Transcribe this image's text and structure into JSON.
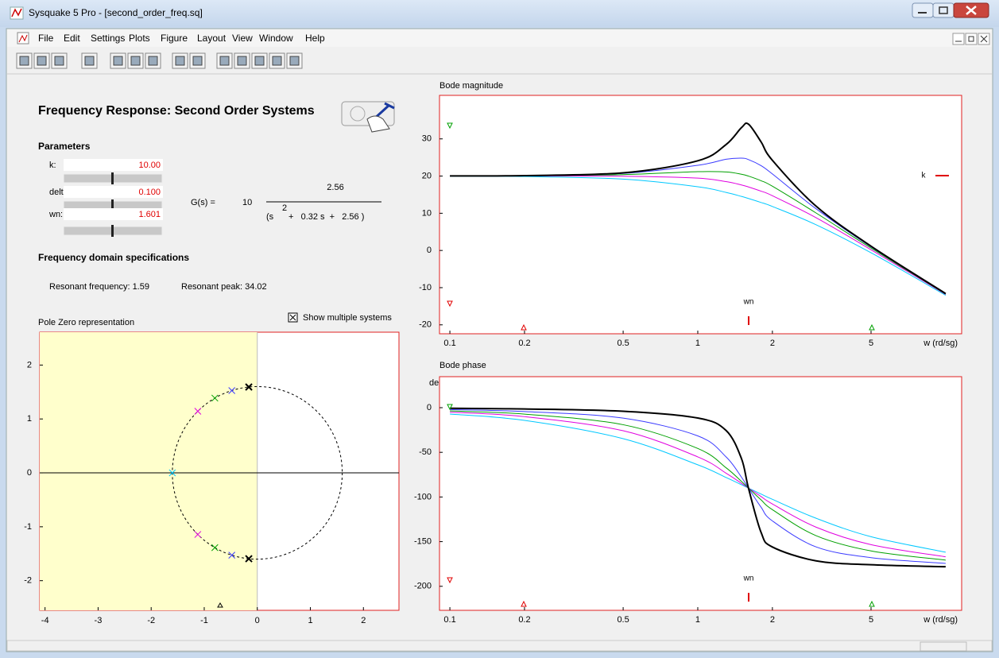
{
  "window": {
    "title": "Sysquake 5 Pro - [second_order_freq.sq]"
  },
  "menu": [
    "File",
    "Edit",
    "Settings",
    "Plots",
    "Figure",
    "Layout",
    "View",
    "Window",
    "Help"
  ],
  "panel": {
    "title": "Frequency Response: Second Order Systems",
    "parameters_heading": "Parameters",
    "parameters": [
      {
        "label": "k:",
        "value": "10.00"
      },
      {
        "label": "delta:",
        "value": "0.100"
      },
      {
        "label": "wn:",
        "value": "1.601"
      }
    ],
    "transfer": {
      "lhs": "G(s) =",
      "gain": "10",
      "numerator": "2.56",
      "den_open": "(s",
      "exponent": "2",
      "den_rest": "+   0.32 s  +   2.56 )"
    },
    "specs_heading": "Frequency domain specifications",
    "specs": [
      "Resonant frequency: 1.59",
      "Resonant peak: 34.02"
    ]
  },
  "pole_zero": {
    "title": "Pole Zero representation",
    "checkbox_label": "Show multiple systems",
    "xlim": [
      -4.1,
      2.67
    ],
    "ylim": [
      -2.55,
      2.61
    ],
    "xticks": [
      -4,
      -3,
      -2,
      -1,
      0,
      1,
      2
    ],
    "yticks": [
      -2,
      -1,
      0,
      1,
      2
    ],
    "stable_region_color": "#ffffcc",
    "circle_radius": 1.601,
    "poles": [
      {
        "color": "#3a3aff",
        "points": [
          [
            -0.48,
            1.527
          ],
          [
            -0.48,
            -1.527
          ]
        ]
      },
      {
        "color": "#00a000",
        "points": [
          [
            -0.8,
            1.387
          ],
          [
            -0.8,
            -1.387
          ]
        ]
      },
      {
        "color": "#e000e0",
        "points": [
          [
            -1.121,
            1.143
          ],
          [
            -1.121,
            -1.143
          ]
        ]
      },
      {
        "color": "#00c8ff",
        "points": [
          [
            -1.601,
            0
          ]
        ]
      },
      {
        "color": "#000000",
        "points": [
          [
            -0.16,
            1.593
          ],
          [
            -0.16,
            -1.593
          ]
        ]
      }
    ]
  },
  "bode_magnitude": {
    "title": "Bode magnitude",
    "x_label": "w (rd/sg)",
    "log_x": true,
    "k_label": "k",
    "wn_label": "wn",
    "xlim": [
      0.0908,
      11.6
    ],
    "ylim": [
      -22.4,
      41.7
    ],
    "xticks": [
      0.1,
      0.2,
      0.5,
      1,
      2,
      5
    ],
    "yticks": [
      -20,
      -10,
      0,
      10,
      20,
      30
    ],
    "x": [
      0.1,
      0.2,
      0.5,
      1,
      1.3,
      1.5,
      1.601,
      1.8,
      2,
      3,
      5,
      10
    ],
    "series": [
      {
        "color": "#00c8ff",
        "width": 1,
        "values": [
          19.97,
          19.87,
          19.19,
          17.14,
          15.6,
          14.53,
          13.98,
          12.9,
          11.83,
          6.92,
          -0.63,
          -12.04
        ]
      },
      {
        "color": "#e000e0",
        "width": 1,
        "values": [
          20.0,
          20.0,
          19.97,
          19.44,
          18.51,
          17.61,
          17.08,
          15.94,
          14.72,
          8.8,
          0.19,
          -11.82
        ]
      },
      {
        "color": "#00a000",
        "width": 1,
        "values": [
          20.02,
          20.07,
          20.4,
          21.18,
          21.11,
          20.49,
          20.0,
          18.75,
          17.27,
          10.08,
          0.64,
          -11.72
        ]
      },
      {
        "color": "#3a3aff",
        "width": 1,
        "values": [
          20.03,
          20.11,
          20.71,
          22.9,
          24.52,
          24.81,
          24.44,
          22.8,
          20.57,
          11.21,
          0.96,
          -11.64
        ]
      },
      {
        "color": "#000000",
        "width": 2,
        "values": [
          20.03,
          20.13,
          20.87,
          24.11,
          28.47,
          33.01,
          33.98,
          29.2,
          24.24,
          11.91,
          1.14,
          -11.6
        ]
      }
    ]
  },
  "bode_phase": {
    "title": "Bode phase",
    "x_label": "w (rd/sg)",
    "y_label": "deg.",
    "log_x": true,
    "wn_label": "wn",
    "xlim": [
      0.0908,
      11.6
    ],
    "ylim": [
      -226.9,
      34.7
    ],
    "xticks": [
      0.1,
      0.2,
      0.5,
      1,
      2,
      5
    ],
    "yticks": [
      -200,
      -150,
      -100,
      -50,
      0
    ],
    "x": [
      0.1,
      0.2,
      0.5,
      1,
      1.3,
      1.5,
      1.601,
      1.8,
      2,
      3,
      5,
      10
    ],
    "series": [
      {
        "color": "#00c8ff",
        "width": 1,
        "values": [
          -7.15,
          -14.23,
          -34.69,
          -63.98,
          -78.16,
          -86.27,
          -90,
          -96.7,
          -102.6,
          -123.8,
          -144.5,
          -161.8
        ]
      },
      {
        "color": "#e000e0",
        "width": 1,
        "values": [
          -5.02,
          -10.07,
          -25.85,
          -55.1,
          -73.32,
          -84.68,
          -90,
          -99.5,
          -107.8,
          -133.8,
          -153.4,
          -167.0
        ]
      },
      {
        "color": "#00a000",
        "width": 1,
        "values": [
          -3.59,
          -7.23,
          -19.08,
          -45.69,
          -67.24,
          -82.57,
          -90,
          -103.2,
          -114.2,
          -143.3,
          -160.4,
          -170.7
        ]
      },
      {
        "color": "#3a3aff",
        "width": 1,
        "values": [
          -2.15,
          -4.35,
          -11.72,
          -31.58,
          -55.05,
          -77.75,
          -90,
          -111.4,
          -126.8,
          -155.9,
          -167.9,
          -174.4
        ]
      },
      {
        "color": "#000000",
        "width": 2,
        "values": [
          -0.72,
          -1.45,
          -3.96,
          -11.57,
          -25.48,
          -56.9,
          -90,
          -139.6,
          -156.0,
          -171.5,
          -175.9,
          -178.1
        ]
      }
    ]
  }
}
